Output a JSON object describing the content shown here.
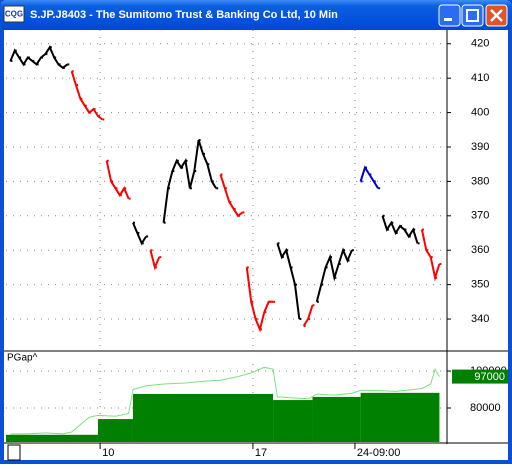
{
  "window": {
    "icon": "CQG",
    "title": "S.JP.J8403 - The Sumitomo Trust & Banking Co Ltd, 10 Min"
  },
  "chart_data": [
    {
      "type": "line",
      "grid": true,
      "xlim": [
        -1,
        99.5
      ],
      "xticks": [
        {
          "value": 20.5,
          "label": "10"
        },
        {
          "value": 55.4,
          "label": "17"
        },
        {
          "value": 78.7,
          "label": "24-09:00"
        }
      ],
      "ylim": [
        331,
        424
      ],
      "yticks": [
        340,
        350,
        360,
        370,
        380,
        390,
        400,
        410,
        420
      ],
      "series": [
        {
          "color": "#000000",
          "x": [
            0,
            1,
            2,
            3,
            4,
            5,
            6,
            7,
            8,
            9,
            10,
            11,
            12,
            13,
            null,
            28,
            29,
            30,
            31,
            null,
            35,
            36,
            37,
            38,
            39,
            40,
            41,
            42,
            43,
            44,
            45,
            46,
            47,
            null,
            61,
            62,
            63,
            64,
            65,
            66,
            null,
            70,
            71,
            72,
            73,
            74,
            75,
            76,
            77,
            78,
            null,
            85,
            86,
            87,
            88,
            89,
            90,
            91,
            92,
            93
          ],
          "values": [
            415,
            418,
            416,
            414,
            416,
            415,
            414,
            416,
            417,
            419,
            416,
            414,
            413,
            414,
            null,
            368,
            365,
            362,
            364,
            null,
            368,
            378,
            383,
            386,
            384,
            386,
            378,
            383,
            392,
            388,
            385,
            380,
            378,
            null,
            362,
            358,
            360,
            355,
            350,
            340,
            null,
            345,
            350,
            355,
            358,
            352,
            356,
            360,
            357,
            360,
            null,
            370,
            366,
            368,
            365,
            367,
            366,
            364,
            366,
            362
          ]
        },
        {
          "color": "#ff0000",
          "x": [
            14,
            15,
            16,
            17,
            18,
            19,
            20,
            21,
            null,
            22,
            23,
            24,
            25,
            26,
            27,
            null,
            32,
            33,
            34,
            null,
            48,
            49,
            50,
            51,
            52,
            53,
            null,
            54,
            55,
            56,
            57,
            58,
            59,
            60,
            null,
            67,
            68,
            69,
            null,
            94,
            95,
            96,
            97,
            98
          ],
          "values": [
            412,
            408,
            404,
            402,
            400,
            401,
            399,
            398,
            null,
            386,
            380,
            378,
            376,
            378,
            375,
            null,
            360,
            355,
            358,
            null,
            382,
            378,
            374,
            372,
            370,
            371,
            null,
            355,
            345,
            340,
            337,
            342,
            345,
            345,
            null,
            338,
            340,
            344,
            null,
            366,
            360,
            358,
            352,
            356
          ]
        },
        {
          "color": "#0000cc",
          "x": [
            80,
            81,
            82,
            83,
            84
          ],
          "values": [
            380,
            384,
            382,
            380,
            378
          ]
        }
      ]
    },
    {
      "type": "area",
      "title": "PGap^",
      "grid": true,
      "xlim": [
        -1,
        99.5
      ],
      "ylim": [
        61600,
        110300
      ],
      "yticks": [
        80000,
        100000
      ],
      "current_value": 97000,
      "series": [
        {
          "kind": "step",
          "color": "#008000",
          "x": [
            -1,
            20,
            28,
            60,
            69,
            80,
            98
          ],
          "values": [
            65500,
            74000,
            87600,
            84300,
            86000,
            88200,
            88200
          ]
        },
        {
          "kind": "line",
          "color": "#7fe07f",
          "x": [
            0,
            4,
            8,
            12,
            14,
            16,
            18,
            20,
            24,
            27,
            28,
            31,
            35,
            40,
            44,
            48,
            52,
            55,
            58,
            60,
            61,
            64,
            68,
            70,
            74,
            78,
            80,
            84,
            88,
            92,
            94,
            96,
            97,
            98
          ],
          "values": [
            66000,
            66000,
            66500,
            66000,
            67000,
            71000,
            75000,
            76000,
            75500,
            77000,
            90000,
            92000,
            93000,
            93500,
            94500,
            95000,
            97000,
            99000,
            102000,
            101000,
            86000,
            85500,
            85000,
            87500,
            87000,
            88000,
            89500,
            89500,
            89000,
            90000,
            90500,
            93000,
            101000,
            97000
          ]
        }
      ]
    }
  ]
}
